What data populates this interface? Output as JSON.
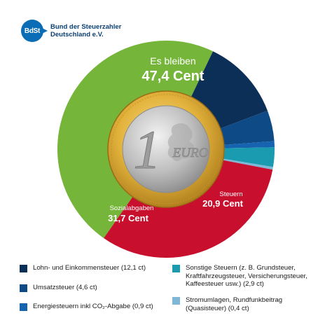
{
  "brand": {
    "abbr": "BdSt",
    "name_line1": "Bund der Steuerzahler",
    "name_line2": "Deutschland e.V."
  },
  "chart_data": {
    "type": "pie",
    "style": "donut-with-coin",
    "slices": [
      {
        "label": "Es bleiben",
        "value": 47.4,
        "display": "47,4 Cent",
        "color": "#74b53a"
      },
      {
        "label": "Lohn- und Einkommensteuer (12,1 ct)",
        "value": 12.1,
        "color": "#0c2f57"
      },
      {
        "label": "Umsatzsteuer (4,6 ct)",
        "value": 4.6,
        "color": "#0e4a86"
      },
      {
        "label": "Energiesteuern inkl CO₂-Abgabe (0,9 ct)",
        "value": 0.9,
        "color": "#1664b0"
      },
      {
        "label": "Sonstige Steuern (z. B. Grundsteuer,\nKraftfahrzeugsteuer, Versicherungsteuer,\nKaffeesteuer usw.) (2,9 ct)",
        "value": 2.9,
        "color": "#1b9bb0"
      },
      {
        "label": "Stromumlagen, Rundfunkbeitrag\n(Quasisteuer) (0,4 ct)",
        "value": 0.4,
        "color": "#7fb8d6"
      },
      {
        "label": "Sozialabgaben",
        "value": 31.7,
        "display": "31,7 Cent",
        "color": "#c8102e"
      }
    ],
    "group_labels": [
      {
        "label": "Steuern",
        "display": "20,9 Cent"
      }
    ],
    "coin": {
      "numeral": "1",
      "word": "EURO"
    }
  }
}
